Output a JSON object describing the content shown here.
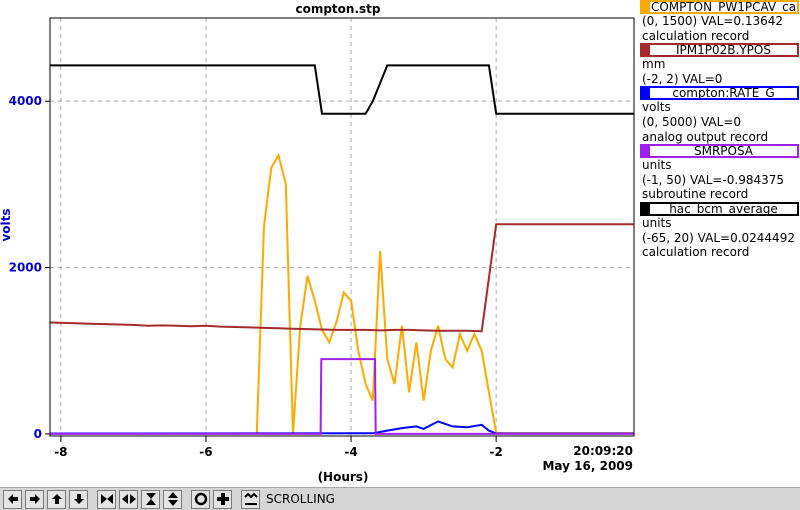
{
  "chart_data": {
    "type": "line",
    "title": "compton.stp",
    "xlabel": "(Hours)",
    "ylabel": "volts",
    "xlim": [
      -8.15,
      -0.1
    ],
    "ylim": [
      -25,
      5000
    ],
    "xticks": [
      -8,
      -6,
      -4,
      -2
    ],
    "xtick_labels": [
      "-8",
      "-6",
      "-4",
      "-2"
    ],
    "yticks": [
      0,
      2000,
      4000
    ],
    "ytick_labels": [
      "0",
      "2000",
      "4000"
    ],
    "grid": true,
    "timestamp_time": "20:09:20",
    "timestamp_date": "May 16, 2009",
    "series": [
      {
        "name": "COMPTON_PW1PCAV_ca",
        "color": "#ffaa00",
        "x": [
          -8.15,
          -5.3,
          -5.2,
          -5.1,
          -5.0,
          -4.9,
          -4.8,
          -4.7,
          -4.6,
          -4.5,
          -4.4,
          -4.3,
          -4.2,
          -4.1,
          -4.0,
          -3.9,
          -3.8,
          -3.7,
          -3.6,
          -3.5,
          -3.4,
          -3.3,
          -3.2,
          -3.1,
          -3.0,
          -2.9,
          -2.8,
          -2.7,
          -2.6,
          -2.5,
          -2.4,
          -2.3,
          -2.2,
          -2.1,
          -2.0,
          -1.9,
          -1.8,
          -0.1
        ],
        "y": [
          5,
          5,
          2500,
          3200,
          3350,
          3000,
          5,
          1300,
          1900,
          1600,
          1250,
          1100,
          1350,
          1700,
          1600,
          1000,
          600,
          400,
          2200,
          900,
          600,
          1300,
          500,
          1100,
          400,
          1000,
          1300,
          900,
          800,
          1200,
          1000,
          1200,
          1000,
          500,
          15,
          10,
          10,
          10
        ]
      },
      {
        "name": "IPM1P02B.YPOS",
        "color": "#a52a2a",
        "x": [
          -8.15,
          -7.8,
          -7.6,
          -7.4,
          -7.2,
          -7.0,
          -6.8,
          -6.6,
          -6.4,
          -6.2,
          -6.0,
          -5.8,
          -5.6,
          -5.4,
          -5.2,
          -5.0,
          -4.8,
          -4.6,
          -4.4,
          -4.2,
          -4.0,
          -3.8,
          -3.6,
          -3.4,
          -3.2,
          -3.0,
          -2.8,
          -2.6,
          -2.4,
          -2.2,
          -2.0,
          -1.8,
          -0.1
        ],
        "y": [
          1340,
          1330,
          1325,
          1320,
          1315,
          1310,
          1300,
          1305,
          1300,
          1295,
          1300,
          1290,
          1285,
          1280,
          1275,
          1270,
          1265,
          1260,
          1255,
          1250,
          1250,
          1250,
          1245,
          1250,
          1250,
          1245,
          1240,
          1240,
          1240,
          1235,
          2520,
          2520,
          2520
        ]
      },
      {
        "name": "compton:RATE_G",
        "color": "#0000ff",
        "x": [
          -8.15,
          -3.7,
          -3.5,
          -3.3,
          -3.1,
          -3.0,
          -2.8,
          -2.6,
          -2.4,
          -2.2,
          -2.1,
          -2.0,
          -1.9,
          -0.1
        ],
        "y": [
          5,
          8,
          40,
          70,
          90,
          60,
          150,
          90,
          80,
          110,
          40,
          5,
          5,
          5
        ]
      },
      {
        "name": "SMRPOSA",
        "color": "#a020f0",
        "x": [
          -8.15,
          -4.42,
          -4.41,
          -3.67,
          -3.66,
          -0.1
        ],
        "y": [
          0,
          0,
          900,
          900,
          0,
          0
        ]
      },
      {
        "name": "hac_bcm_average",
        "color": "#000000",
        "x": [
          -8.15,
          -6.3,
          -6.0,
          -5.6,
          -5.2,
          -5.0,
          -4.8,
          -4.5,
          -4.4,
          -4.3,
          -4.0,
          -3.8,
          -3.7,
          -3.5,
          -3.3,
          -3.0,
          -2.8,
          -2.5,
          -2.3,
          -2.1,
          -2.0,
          -1.8,
          -0.1
        ],
        "y": [
          4430,
          4430,
          4430,
          4430,
          4430,
          4430,
          4430,
          4430,
          3850,
          3850,
          3850,
          3850,
          4000,
          4430,
          4430,
          4430,
          4430,
          4430,
          4430,
          4430,
          3850,
          3850,
          3850
        ]
      }
    ]
  },
  "legend": [
    {
      "name": "COMPTON_PW1PCAV_ca",
      "line1": "(0, 1500) VAL=0.13642",
      "line2": "calculation record",
      "color": "#ffaa00"
    },
    {
      "name": "IPM1P02B.YPOS",
      "line1": "mm",
      "line2": "(-2, 2) VAL=0",
      "color": "#a52a2a"
    },
    {
      "name": "compton:RATE_G",
      "line1": "volts",
      "line2": "(0, 5000) VAL=0",
      "line3": "analog output record",
      "color": "#0000ff"
    },
    {
      "name": "SMRPOSA",
      "line1": "units",
      "line2": "(-1, 50) VAL=-0.984375",
      "line3": "subroutine record",
      "color": "#a020f0"
    },
    {
      "name": "hac_bcm_average",
      "line1": "units",
      "line2": "(-65, 20) VAL=0.0244492",
      "line3": "calculation record",
      "color": "#000000"
    }
  ],
  "toolbar": {
    "status": "SCROLLING",
    "buttons": [
      "arrow-left-icon",
      "arrow-right-icon",
      "arrow-up-icon",
      "arrow-down-icon",
      "zoom-in-x-icon",
      "zoom-out-x-icon",
      "zoom-in-y-icon",
      "zoom-out-y-icon",
      "autoscale-icon",
      "add-icon",
      "stop-scroll-icon"
    ]
  }
}
